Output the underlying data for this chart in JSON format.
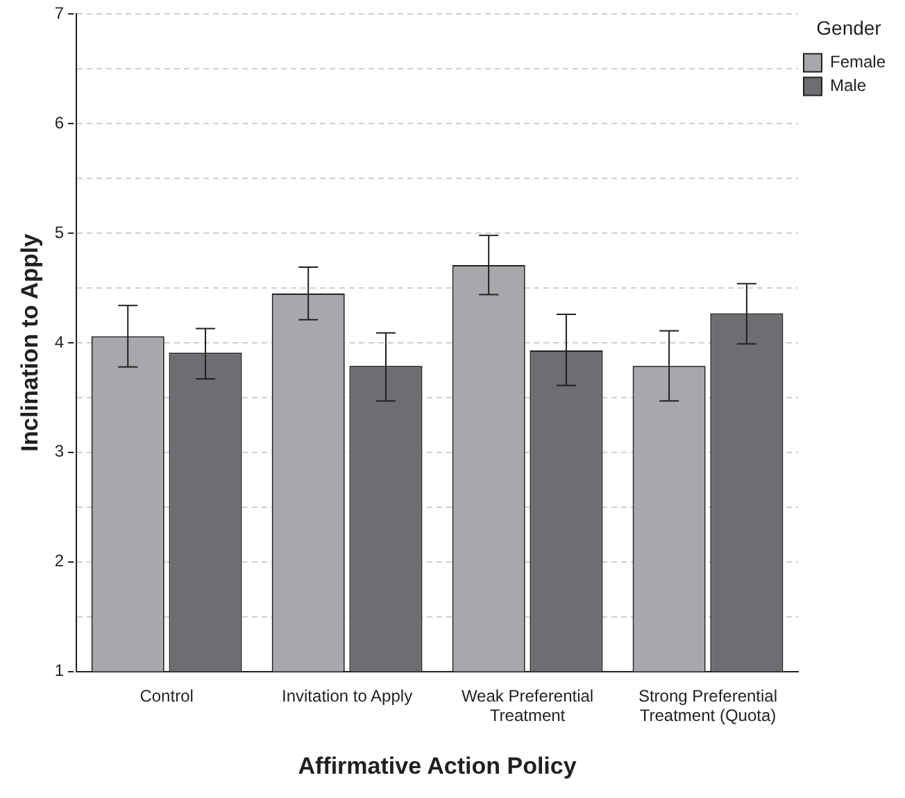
{
  "chart_data": {
    "type": "bar",
    "xlabel": "Affirmative Action Policy",
    "ylabel": "Inclination to Apply",
    "legend_title": "Gender",
    "legend": "top right",
    "grid": "y",
    "categories": [
      "Control",
      "Invitation to Apply",
      "Weak Preferential Treatment",
      "Strong Preferential Treatment (Quota)"
    ],
    "ylim": [
      1,
      7
    ],
    "yticks": [
      1,
      {
        "value": 1.5,
        "label": null
      },
      2,
      {
        "value": 2.5,
        "label": null
      },
      3,
      {
        "value": 3.5,
        "label": null
      },
      4,
      {
        "value": 4.5,
        "label": null
      },
      5,
      {
        "value": 5.5,
        "label": null
      },
      6,
      {
        "value": 6.5,
        "label": null
      },
      7
    ],
    "series": [
      {
        "name": "Female",
        "color": "#a6a8ab",
        "values": [
          4.06,
          4.45,
          4.71,
          3.79
        ],
        "errors": [
          [
            3.78,
            4.34
          ],
          [
            4.21,
            4.69
          ],
          [
            4.44,
            4.98
          ],
          [
            3.47,
            4.11
          ]
        ]
      },
      {
        "name": "Male",
        "color": "#6d6e71",
        "values": [
          3.91,
          3.79,
          3.93,
          4.27
        ],
        "errors": [
          [
            3.67,
            4.13
          ],
          [
            3.47,
            4.09
          ],
          [
            3.61,
            4.26
          ],
          [
            3.99,
            4.54
          ]
        ]
      }
    ]
  }
}
